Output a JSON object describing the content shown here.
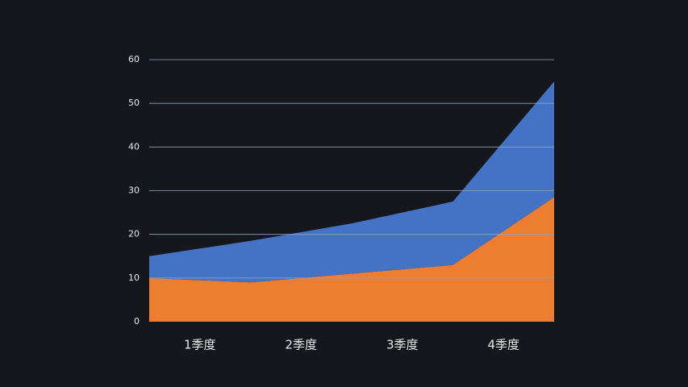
{
  "chart_data": {
    "type": "stacked_area",
    "x": [
      0,
      1,
      2,
      3,
      4
    ],
    "xlim": [
      0,
      4
    ],
    "xticks": [
      {
        "value": 0.5,
        "label": "1季度"
      },
      {
        "value": 1.5,
        "label": "2季度"
      },
      {
        "value": 2.5,
        "label": "3季度"
      },
      {
        "value": 3.5,
        "label": "4季度"
      }
    ],
    "series": [
      {
        "color": "#ed7d31",
        "values": [
          10,
          9,
          11,
          13,
          28.5
        ]
      },
      {
        "color": "#4472c4",
        "values": [
          5,
          9.5,
          11.5,
          14.5,
          26.5
        ]
      }
    ],
    "ylim": [
      0,
      60
    ],
    "yticks": [
      0,
      10,
      20,
      30,
      40,
      50,
      60
    ],
    "grid": true
  }
}
